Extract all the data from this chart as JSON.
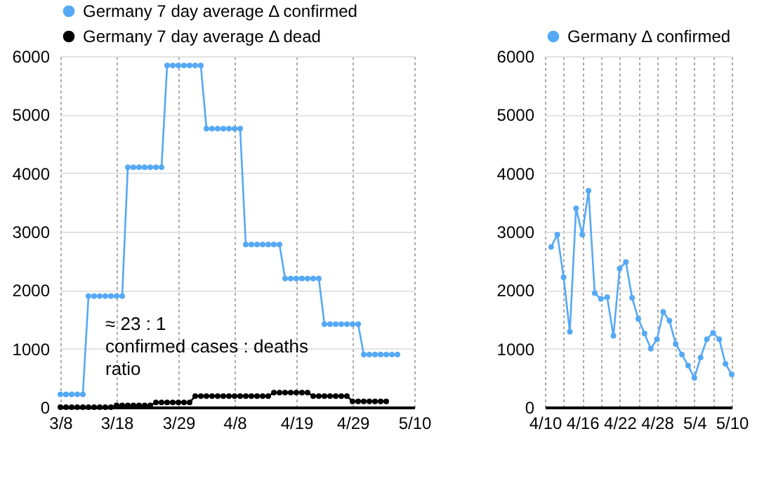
{
  "chart_data": [
    {
      "type": "line",
      "marker": "circle",
      "legend": "top left",
      "grid": true,
      "xlim": [
        "--03-08",
        "--05-10"
      ],
      "ylim": [
        0,
        6000
      ],
      "yticks": [
        0,
        1000,
        2000,
        3000,
        4000,
        5000,
        6000
      ],
      "xticks": [
        {
          "value": "--03-08",
          "label": "3/8"
        },
        {
          "value": "--03-18",
          "label": "3/18"
        },
        {
          "value": "--03-29",
          "label": "3/29"
        },
        {
          "value": "--04-08",
          "label": "4/8"
        },
        {
          "value": "--04-19",
          "label": "4/19"
        },
        {
          "value": "--04-29",
          "label": "4/29"
        },
        {
          "value": "--05-10",
          "label": "5/10"
        }
      ],
      "annotations": [
        "≈ 23 : 1\nconfirmed cases : deaths\nratio"
      ],
      "series": [
        {
          "name": "Germany    7 day average Δ confirmed",
          "color": "#55a9f5",
          "x": [
            "--03-08",
            "--03-09",
            "--03-10",
            "--03-11",
            "--03-12",
            "--03-13",
            "--03-14",
            "--03-15",
            "--03-16",
            "--03-17",
            "--03-18",
            "--03-19",
            "--03-20",
            "--03-21",
            "--03-22",
            "--03-23",
            "--03-24",
            "--03-25",
            "--03-26",
            "--03-27",
            "--03-28",
            "--03-29",
            "--03-30",
            "--03-31",
            "--04-01",
            "--04-02",
            "--04-03",
            "--04-04",
            "--04-05",
            "--04-06",
            "--04-07",
            "--04-08",
            "--04-09",
            "--04-10",
            "--04-11",
            "--04-12",
            "--04-13",
            "--04-14",
            "--04-15",
            "--04-16",
            "--04-17",
            "--04-18",
            "--04-19",
            "--04-20",
            "--04-21",
            "--04-22",
            "--04-23",
            "--04-24",
            "--04-25",
            "--04-26",
            "--04-27",
            "--04-28",
            "--04-29",
            "--04-30",
            "--05-01",
            "--05-02",
            "--05-03",
            "--05-04",
            "--05-05",
            "--05-06",
            "--05-07"
          ],
          "values": [
            220,
            220,
            220,
            220,
            220,
            1900,
            1900,
            1900,
            1900,
            1900,
            1900,
            1900,
            4100,
            4100,
            4100,
            4100,
            4100,
            4100,
            4100,
            5840,
            5840,
            5840,
            5840,
            5840,
            5840,
            5840,
            4760,
            4760,
            4760,
            4760,
            4760,
            4760,
            4760,
            2780,
            2780,
            2780,
            2780,
            2780,
            2780,
            2780,
            2200,
            2200,
            2200,
            2200,
            2200,
            2200,
            2200,
            1420,
            1420,
            1420,
            1420,
            1420,
            1420,
            1420,
            900,
            900,
            900,
            900,
            900,
            900,
            900
          ]
        },
        {
          "name": "Germany    7 day average Δ dead",
          "color": "#000000",
          "x": [
            "--03-08",
            "--03-09",
            "--03-10",
            "--03-11",
            "--03-12",
            "--03-13",
            "--03-14",
            "--03-15",
            "--03-16",
            "--03-17",
            "--03-18",
            "--03-19",
            "--03-20",
            "--03-21",
            "--03-22",
            "--03-23",
            "--03-24",
            "--03-25",
            "--03-26",
            "--03-27",
            "--03-28",
            "--03-29",
            "--03-30",
            "--03-31",
            "--04-01",
            "--04-02",
            "--04-03",
            "--04-04",
            "--04-05",
            "--04-06",
            "--04-07",
            "--04-08",
            "--04-09",
            "--04-10",
            "--04-11",
            "--04-12",
            "--04-13",
            "--04-14",
            "--04-15",
            "--04-16",
            "--04-17",
            "--04-18",
            "--04-19",
            "--04-20",
            "--04-21",
            "--04-22",
            "--04-23",
            "--04-24",
            "--04-25",
            "--04-26",
            "--04-27",
            "--04-28",
            "--04-29",
            "--04-30",
            "--05-01",
            "--05-02",
            "--05-03",
            "--05-04",
            "--05-05"
          ],
          "values": [
            0,
            0,
            0,
            0,
            0,
            0,
            0,
            0,
            0,
            0,
            30,
            30,
            30,
            30,
            30,
            30,
            30,
            80,
            80,
            80,
            80,
            80,
            80,
            80,
            190,
            190,
            190,
            190,
            190,
            190,
            190,
            190,
            190,
            190,
            190,
            190,
            190,
            190,
            250,
            250,
            250,
            250,
            250,
            250,
            250,
            190,
            190,
            190,
            190,
            190,
            190,
            190,
            100,
            100,
            100,
            100,
            100,
            100,
            100
          ]
        }
      ]
    },
    {
      "type": "line",
      "marker": "circle",
      "legend": "top",
      "grid": true,
      "xlim": [
        "--04-10",
        "--05-10"
      ],
      "ylim": [
        0,
        6000
      ],
      "yticks": [
        0,
        1000,
        2000,
        3000,
        4000,
        5000,
        6000
      ],
      "xticks": [
        {
          "value": "--04-10",
          "label": "4/10"
        },
        {
          "value": "--04-13",
          "label": null
        },
        {
          "value": "--04-16",
          "label": "4/16"
        },
        {
          "value": "--04-19",
          "label": null
        },
        {
          "value": "--04-22",
          "label": "4/22"
        },
        {
          "value": "--04-25",
          "label": null
        },
        {
          "value": "--04-28",
          "label": "4/28"
        },
        {
          "value": "--05-01",
          "label": null
        },
        {
          "value": "--05-04",
          "label": "5/4"
        },
        {
          "value": "--05-07",
          "label": null
        },
        {
          "value": "--05-10",
          "label": "5/10"
        }
      ],
      "series": [
        {
          "name": "Germany Δ confirmed",
          "color": "#55a9f5",
          "x": [
            "--04-11",
            "--04-12",
            "--04-13",
            "--04-14",
            "--04-15",
            "--04-16",
            "--04-17",
            "--04-18",
            "--04-19",
            "--04-20",
            "--04-21",
            "--04-22",
            "--04-23",
            "--04-24",
            "--04-25",
            "--04-26",
            "--04-27",
            "--04-28",
            "--04-29",
            "--04-30",
            "--05-01",
            "--05-02",
            "--05-03",
            "--05-04",
            "--05-05",
            "--05-06",
            "--05-07",
            "--05-08",
            "--05-09",
            "--05-10"
          ],
          "values": [
            2740,
            2950,
            2220,
            1290,
            3400,
            2950,
            3700,
            1950,
            1850,
            1880,
            1220,
            2370,
            2480,
            1870,
            1510,
            1260,
            1000,
            1160,
            1630,
            1480,
            1080,
            900,
            710,
            500,
            850,
            1160,
            1270,
            1160,
            740,
            560
          ]
        }
      ]
    }
  ]
}
